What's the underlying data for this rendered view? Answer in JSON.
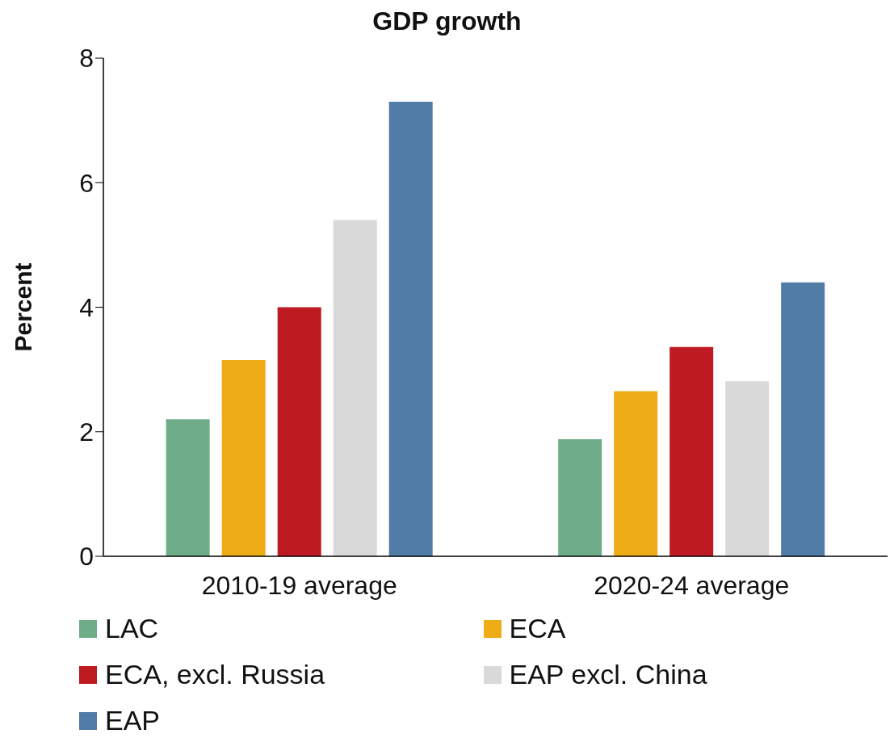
{
  "chart_data": {
    "type": "bar",
    "title": "GDP growth",
    "ylabel": "Percent",
    "categories": [
      "2010-19 average",
      "2020-24 average"
    ],
    "series": [
      {
        "name": "LAC",
        "color": "#6fac88",
        "values": [
          2.2,
          1.88
        ]
      },
      {
        "name": "ECA",
        "color": "#eeac16",
        "values": [
          3.15,
          2.65
        ]
      },
      {
        "name": "ECA, excl. Russia",
        "color": "#be1a22",
        "values": [
          4.0,
          3.36
        ]
      },
      {
        "name": "EAP excl. China",
        "color": "#d9d9d9",
        "values": [
          5.4,
          2.81
        ]
      },
      {
        "name": "EAP",
        "color": "#527ca8",
        "values": [
          7.3,
          4.4
        ]
      }
    ],
    "ylim": [
      0,
      8
    ],
    "yticks": [
      0,
      2,
      4,
      6,
      8
    ],
    "grid": false,
    "legend": "bottom"
  }
}
